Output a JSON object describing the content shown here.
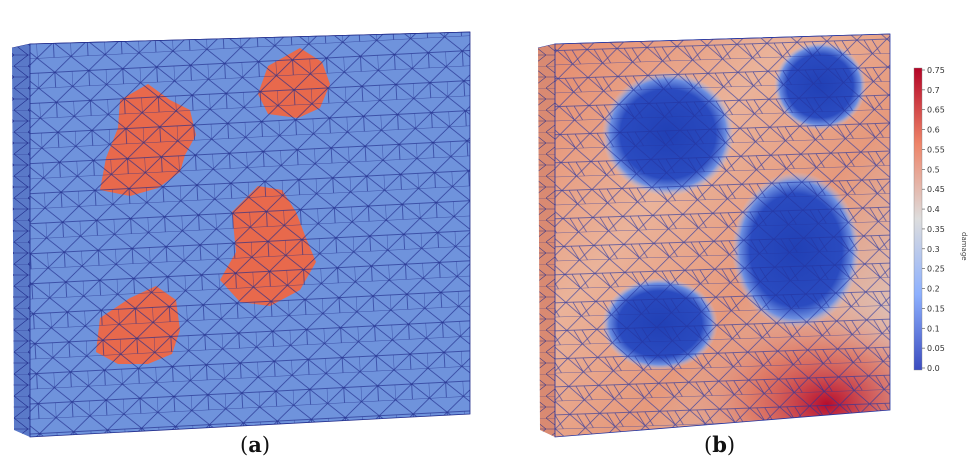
{
  "panels": [
    {
      "caption_open": "(",
      "caption_letter": "a",
      "caption_close": ")"
    },
    {
      "caption_open": "(",
      "caption_letter": "b",
      "caption_close": ")"
    }
  ],
  "colorbar": {
    "title": "damage",
    "ticks": [
      "0.75",
      "0.7",
      "0.65",
      "0.6",
      "0.55",
      "0.5",
      "0.45",
      "0.4",
      "0.35",
      "0.3",
      "0.25",
      "0.2",
      "0.15",
      "0.1",
      "0.05",
      "0.0"
    ],
    "colors": {
      "high": "#b40426",
      "mid": "#dddddd",
      "low": "#3b4cc0"
    }
  },
  "colors": {
    "matrix": "#6f93dc",
    "inclusion": "#e8694c",
    "mesh_line": "#1f2a8a",
    "side_face": "#5a79c8"
  }
}
